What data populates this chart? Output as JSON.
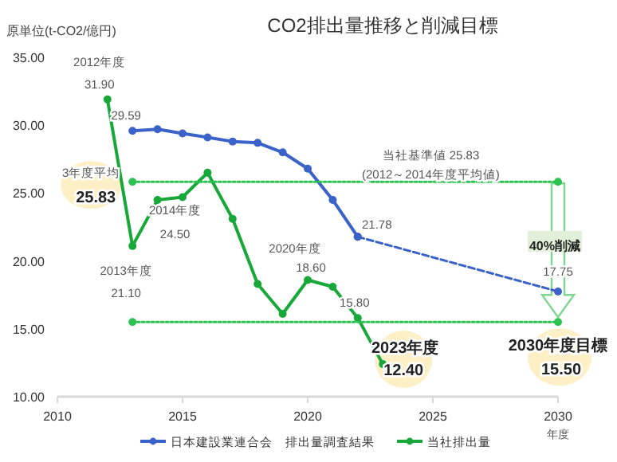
{
  "chart_data": {
    "type": "line",
    "title": "CO2排出量推移と削減目標",
    "ylabel": "原単位(t-CO2/億円)",
    "xlabel": "年度",
    "xlim": [
      2010,
      2030
    ],
    "xticks": [
      2010,
      2015,
      2020,
      2025,
      2030
    ],
    "ylim": [
      10,
      35
    ],
    "yticks": [
      {
        "value": 10,
        "label": "10.00"
      },
      {
        "value": 15,
        "label": "15.00"
      },
      {
        "value": 20,
        "label": "20.00"
      },
      {
        "value": 25,
        "label": "25.00"
      },
      {
        "value": 30,
        "label": "30.00"
      },
      {
        "value": 35,
        "label": "35.00"
      }
    ],
    "grid": false,
    "legend": "bottom",
    "series": [
      {
        "name": "日本建設業連合会　排出量調査結果",
        "color": "#3a62c8",
        "marker": "circle",
        "line_style": "solid",
        "x": [
          2013,
          2014,
          2015,
          2016,
          2017,
          2018,
          2019,
          2020,
          2021,
          2022
        ],
        "values": [
          29.59,
          29.7,
          29.4,
          29.1,
          28.8,
          28.7,
          28.0,
          26.8,
          24.5,
          21.78
        ]
      },
      {
        "color": "#3a62c8",
        "marker": "circle",
        "line_style": "dashed",
        "x": [
          2022,
          2030
        ],
        "values": [
          21.78,
          17.75
        ]
      },
      {
        "name": "当社排出量",
        "color": "#18a83a",
        "marker": "circle",
        "line_style": "solid",
        "x": [
          2012,
          2013,
          2014,
          2015,
          2016,
          2017,
          2018,
          2019,
          2020,
          2021,
          2022,
          2023
        ],
        "values": [
          31.9,
          21.1,
          24.5,
          24.7,
          26.5,
          23.1,
          18.3,
          16.1,
          18.6,
          18.1,
          15.8,
          12.4
        ]
      },
      {
        "color": "#2cc251",
        "marker": "circle",
        "line_style": "dotted",
        "x": [
          2013,
          2030
        ],
        "values": [
          25.83,
          25.83
        ]
      },
      {
        "color": "#2cc251",
        "marker": "circle",
        "line_style": "dotted",
        "x": [
          2013,
          2030
        ],
        "values": [
          15.5,
          15.5
        ]
      }
    ],
    "annotations": [
      {
        "text": "2012年度",
        "x": 2012,
        "y": 31.9
      },
      {
        "text": "31.90",
        "x": 2012,
        "y": 31.9
      },
      {
        "text": "29.59",
        "x": 2013,
        "y": 29.59
      },
      {
        "text": "3年度平均",
        "x": 2013,
        "y": 25.83
      },
      {
        "text": "25.83",
        "x": 2013,
        "y": 25.83
      },
      {
        "text": "2014年度",
        "x": 2014,
        "y": 24.5
      },
      {
        "text": "24.50",
        "x": 2014,
        "y": 24.5
      },
      {
        "text": "2013年度",
        "x": 2013,
        "y": 21.1
      },
      "21.10",
      {
        "text": "2020年度",
        "x": 2020,
        "y": 18.6
      },
      {
        "text": "18.60",
        "x": 2020,
        "y": 18.6
      },
      {
        "text": "15.80",
        "x": 2022,
        "y": 15.8
      },
      {
        "text": "21.78",
        "x": 2022,
        "y": 21.78
      },
      {
        "text": "当社基準値 25.83",
        "x": 2026,
        "y": 25.83
      },
      {
        "text": "(2012～2014年度平均値)",
        "x": 2026,
        "y": 25.83
      },
      {
        "text": "17.75",
        "x": 2030,
        "y": 17.75
      },
      "40%削減",
      {
        "text": "2023年度",
        "x": 2023,
        "y": 12.4
      },
      {
        "text": "12.40",
        "x": 2023,
        "y": 12.4
      },
      {
        "text": "2030年度目標",
        "x": 2030,
        "y": 15.5
      },
      {
        "text": "15.50",
        "x": 2030,
        "y": 15.5
      }
    ]
  }
}
